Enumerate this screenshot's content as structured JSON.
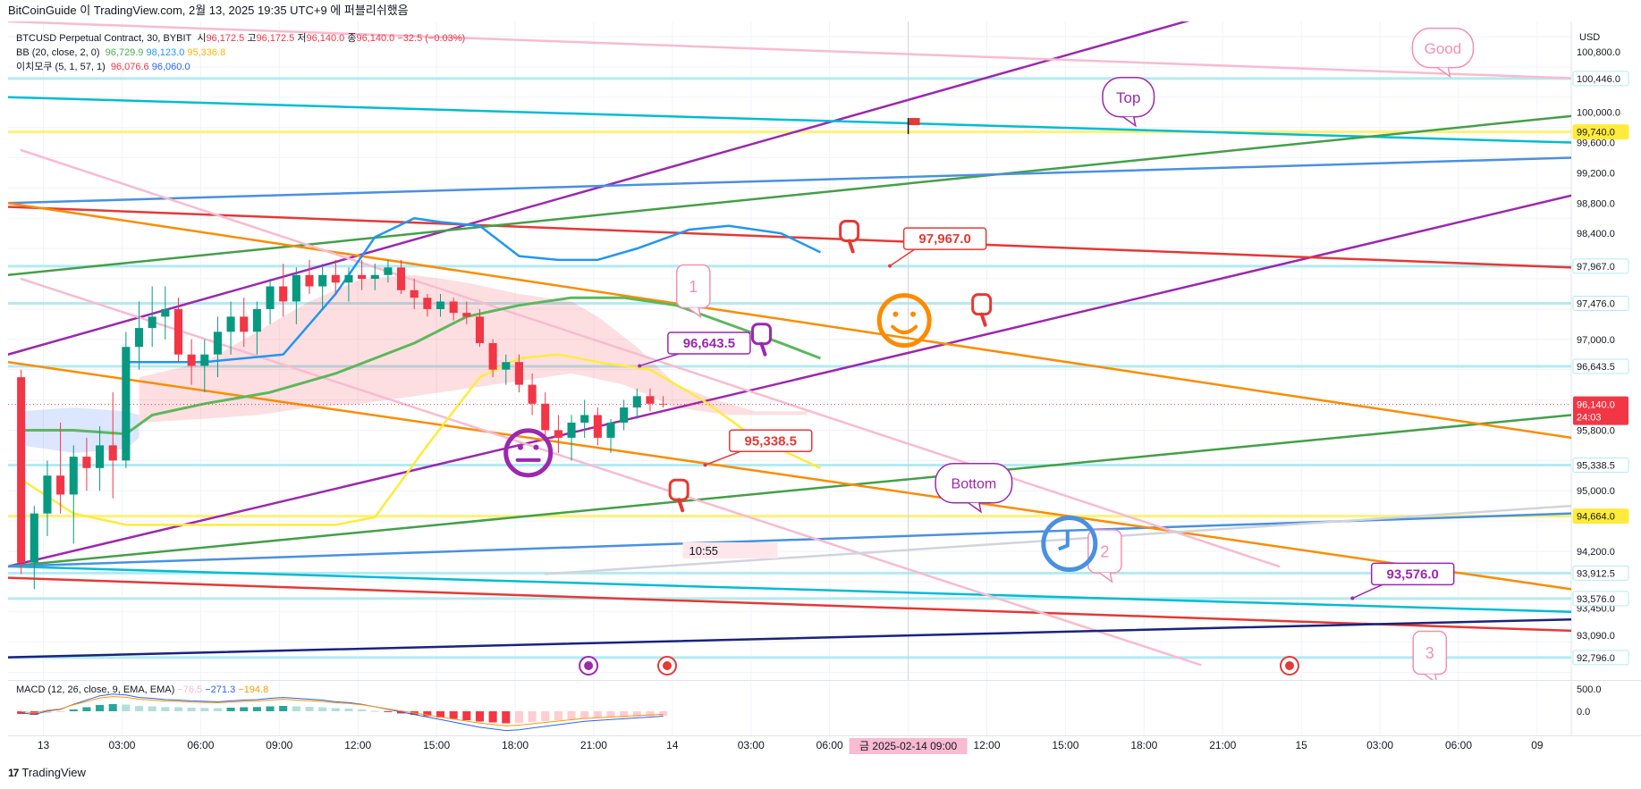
{
  "header": {
    "publish_line": "BitCoinGuide 이 TradingView.com, 2월 13, 2025 19:35 UTC+9 에 퍼블리쉬했음"
  },
  "legend": {
    "symbol": "BTCUSD Perpetual Contract, 30, BYBIT",
    "ohlc": [
      {
        "label": "시",
        "value": "96,172.5"
      },
      {
        "label": "고",
        "value": "96,172.5"
      },
      {
        "label": "저",
        "value": "96,140.0"
      },
      {
        "label": "종",
        "value": "96,140.0"
      }
    ],
    "change": "−32.5 (−0.03%)",
    "bb_label": "BB (20, close, 2, 0)",
    "bb_values": [
      "96,729.9",
      "98,123.0",
      "95,336.8"
    ],
    "ichimoku_label": "이치모쿠 (5, 1, 57, 1)",
    "ichimoku_values": [
      "96,076.6",
      "96,060.0"
    ],
    "colors": {
      "bb_basis": "#4caf50",
      "bb_upper": "#2196f3",
      "bb_lower": "#ffb300",
      "ichi1": "#f23645",
      "ichi2": "#2962ff",
      "ohlc": "#f23645"
    }
  },
  "currency": "USD",
  "macd": {
    "label": "MACD (12, 26, close, 9, EMA, EMA)",
    "values": [
      "−76.5",
      "−271.3",
      "−194.8"
    ],
    "axis_labels": [
      "500.0",
      "0.0"
    ]
  },
  "chart_data": {
    "type": "candlestick",
    "symbol": "BTCUSD",
    "timeframe": "30",
    "price_range": [
      92500,
      101200
    ],
    "price_ticks": [
      "100,800.0",
      "100,000.0",
      "99,600.0",
      "99,200.0",
      "98,800.0",
      "98,400.0",
      "97,000.0",
      "95,800.0",
      "95,000.0",
      "94,200.0",
      "93,450.0",
      "93,090.0"
    ],
    "price_labels": [
      {
        "text": "100,446.0",
        "value": 100446,
        "bg": "#ffffff",
        "fg": "#131722",
        "border": "#b2ebf2"
      },
      {
        "text": "99,740.0",
        "value": 99740,
        "bg": "#ffeb3b",
        "fg": "#131722",
        "border": "#ffeb3b"
      },
      {
        "text": "97,967.0",
        "value": 97967,
        "bg": "#ffffff",
        "fg": "#131722",
        "border": "#b2ebf2"
      },
      {
        "text": "97,476.0",
        "value": 97476,
        "bg": "#ffffff",
        "fg": "#131722",
        "border": "#b2ebf2"
      },
      {
        "text": "96,643.5",
        "value": 96643.5,
        "bg": "#ffffff",
        "fg": "#131722",
        "border": "#b2ebf2"
      },
      {
        "text": "95,338.5",
        "value": 95338.5,
        "bg": "#ffffff",
        "fg": "#131722",
        "border": "#b2ebf2"
      },
      {
        "text": "94,664.0",
        "value": 94664,
        "bg": "#ffeb3b",
        "fg": "#131722",
        "border": "#ffeb3b"
      },
      {
        "text": "93,912.5",
        "value": 93912.5,
        "bg": "#ffffff",
        "fg": "#131722",
        "border": "#b2ebf2"
      },
      {
        "text": "93,576.0",
        "value": 93576,
        "bg": "#ffffff",
        "fg": "#131722",
        "border": "#b2ebf2"
      },
      {
        "text": "92,796.0",
        "value": 92796,
        "bg": "#ffffff",
        "fg": "#131722",
        "border": "#b2ebf2"
      }
    ],
    "current_price": {
      "text": "96,140.0",
      "countdown": "24:03",
      "value": 96140,
      "color": "#f23645"
    },
    "horizontal_levels": [
      {
        "value": 100446,
        "color": "#b2ebf2"
      },
      {
        "value": 99740,
        "color": "#fff176"
      },
      {
        "value": 97967,
        "color": "#b2ebf2"
      },
      {
        "value": 97476,
        "color": "#b2ebf2"
      },
      {
        "value": 96643.5,
        "color": "#b2ebf2"
      },
      {
        "value": 95338.5,
        "color": "#b2ebf2"
      },
      {
        "value": 94664,
        "color": "#fff176"
      },
      {
        "value": 93912.5,
        "color": "#b2ebf2"
      },
      {
        "value": 93576,
        "color": "#b2ebf2"
      },
      {
        "value": 92796,
        "color": "#b2ebf2"
      }
    ],
    "time_ticks": [
      "13",
      "03:00",
      "06:00",
      "09:00",
      "12:00",
      "15:00",
      "18:00",
      "21:00",
      "14",
      "03:00",
      "06:00",
      "09:00",
      "12:00",
      "15:00",
      "18:00",
      "21:00",
      "15",
      "03:00",
      "06:00",
      "09"
    ],
    "time_tick_index": [
      1.7,
      7.7,
      13.7,
      19.7,
      25.7,
      31.7,
      37.7,
      43.7,
      49.7,
      55.7,
      61.7,
      67.7,
      73.7,
      79.7,
      85.7,
      91.7,
      97.7,
      103.7,
      109.7,
      115.7
    ],
    "highlighted_time": "금 2025-02-14   09:00",
    "highlighted_time_index": 67.7,
    "x_index_range": [
      -1,
      118.3
    ],
    "candles": [
      [
        96500,
        96600,
        93900,
        94050
      ],
      [
        94050,
        94800,
        93700,
        94700
      ],
      [
        94700,
        95400,
        94400,
        95200
      ],
      [
        95200,
        95900,
        94700,
        94950
      ],
      [
        94950,
        95600,
        94300,
        95450
      ],
      [
        95450,
        95700,
        95000,
        95300
      ],
      [
        95300,
        95850,
        95000,
        95600
      ],
      [
        95600,
        96300,
        94900,
        95400
      ],
      [
        95400,
        97100,
        95300,
        96900
      ],
      [
        96900,
        97500,
        96600,
        97150
      ],
      [
        97150,
        97700,
        96900,
        97300
      ],
      [
        97300,
        97700,
        97000,
        97400
      ],
      [
        97400,
        97550,
        96700,
        96800
      ],
      [
        96800,
        97000,
        96400,
        96650
      ],
      [
        96650,
        97000,
        96300,
        96800
      ],
      [
        96800,
        97300,
        96500,
        97100
      ],
      [
        97100,
        97500,
        96800,
        97300
      ],
      [
        97300,
        97550,
        96900,
        97100
      ],
      [
        97100,
        97500,
        96800,
        97400
      ],
      [
        97400,
        97800,
        97200,
        97700
      ],
      [
        97700,
        98000,
        97300,
        97500
      ],
      [
        97500,
        97950,
        97200,
        97850
      ],
      [
        97850,
        98050,
        97600,
        97700
      ],
      [
        97700,
        98000,
        97400,
        97850
      ],
      [
        97850,
        98050,
        97600,
        97750
      ],
      [
        97750,
        97950,
        97500,
        97850
      ],
      [
        97850,
        98050,
        97650,
        97800
      ],
      [
        97800,
        98000,
        97650,
        97850
      ],
      [
        97850,
        98050,
        97750,
        97950
      ],
      [
        97950,
        98050,
        97600,
        97650
      ],
      [
        97650,
        97800,
        97400,
        97550
      ],
      [
        97550,
        97600,
        97300,
        97400
      ],
      [
        97400,
        97600,
        97300,
        97500
      ],
      [
        97500,
        97550,
        97250,
        97350
      ],
      [
        97350,
        97500,
        97200,
        97300
      ],
      [
        97300,
        97400,
        96900,
        96950
      ],
      [
        96950,
        97000,
        96500,
        96600
      ],
      [
        96600,
        96800,
        96400,
        96700
      ],
      [
        96700,
        96800,
        96300,
        96400
      ],
      [
        96400,
        96550,
        96000,
        96150
      ],
      [
        96150,
        96300,
        95700,
        95800
      ],
      [
        95800,
        96000,
        95500,
        95700
      ],
      [
        95700,
        96000,
        95400,
        95900
      ],
      [
        95900,
        96200,
        95700,
        96000
      ],
      [
        96000,
        96100,
        95600,
        95700
      ],
      [
        95700,
        95950,
        95500,
        95900
      ],
      [
        95900,
        96200,
        95800,
        96100
      ],
      [
        96100,
        96350,
        95950,
        96250
      ],
      [
        96250,
        96350,
        96050,
        96150
      ],
      [
        96150,
        96250,
        96100,
        96140
      ]
    ],
    "bb_upper": [
      [
        8,
        96700
      ],
      [
        14,
        96700
      ],
      [
        20,
        96800
      ],
      [
        24,
        97600
      ],
      [
        27,
        98350
      ],
      [
        30,
        98600
      ],
      [
        32,
        98550
      ],
      [
        35,
        98500
      ],
      [
        38,
        98100
      ],
      [
        41,
        98050
      ],
      [
        44,
        98050
      ],
      [
        47,
        98200
      ],
      [
        51,
        98450
      ],
      [
        54,
        98500
      ],
      [
        58,
        98400
      ],
      [
        61,
        98150
      ]
    ],
    "bb_basis": [
      [
        0,
        95800
      ],
      [
        4,
        95800
      ],
      [
        8,
        95750
      ],
      [
        10,
        96000
      ],
      [
        14,
        96150
      ],
      [
        19,
        96300
      ],
      [
        24,
        96550
      ],
      [
        30,
        96950
      ],
      [
        34,
        97300
      ],
      [
        38,
        97450
      ],
      [
        42,
        97550
      ],
      [
        46,
        97550
      ],
      [
        50,
        97450
      ],
      [
        54,
        97200
      ],
      [
        58,
        96950
      ],
      [
        61,
        96750
      ]
    ],
    "bb_lower": [
      [
        0,
        95150
      ],
      [
        4,
        94700
      ],
      [
        8,
        94550
      ],
      [
        12,
        94550
      ],
      [
        18,
        94550
      ],
      [
        24,
        94550
      ],
      [
        27,
        94650
      ],
      [
        31,
        95600
      ],
      [
        35,
        96500
      ],
      [
        38,
        96750
      ],
      [
        41,
        96800
      ],
      [
        44,
        96700
      ],
      [
        48,
        96600
      ],
      [
        52,
        96200
      ],
      [
        56,
        95700
      ],
      [
        61,
        95300
      ]
    ],
    "cloud_upper": [
      [
        9,
        96500
      ],
      [
        14,
        96700
      ],
      [
        18,
        97100
      ],
      [
        22,
        97500
      ],
      [
        26,
        97800
      ],
      [
        30,
        97850
      ],
      [
        34,
        97750
      ],
      [
        38,
        97600
      ],
      [
        42,
        97500
      ],
      [
        44,
        97300
      ],
      [
        47,
        96900
      ],
      [
        50,
        96400
      ],
      [
        53,
        96200
      ],
      [
        56,
        96050
      ],
      [
        60,
        96050
      ]
    ],
    "cloud_lower": [
      [
        9,
        95900
      ],
      [
        14,
        95950
      ],
      [
        18,
        96000
      ],
      [
        22,
        96100
      ],
      [
        26,
        96150
      ],
      [
        30,
        96250
      ],
      [
        34,
        96350
      ],
      [
        38,
        96450
      ],
      [
        42,
        96550
      ],
      [
        46,
        96400
      ],
      [
        50,
        96100
      ],
      [
        54,
        96000
      ],
      [
        58,
        96000
      ],
      [
        60,
        96000
      ]
    ],
    "cloud_blue_upper": [
      [
        0,
        96050
      ],
      [
        4,
        96100
      ],
      [
        8,
        96050
      ],
      [
        9,
        96000
      ]
    ],
    "cloud_blue_lower": [
      [
        0,
        95600
      ],
      [
        4,
        95500
      ],
      [
        8,
        95550
      ],
      [
        9,
        95700
      ]
    ],
    "trendlines": [
      {
        "color": "#9c27b0",
        "width": 2.5,
        "p1": [
          -1,
          96800
        ],
        "p2": [
          95,
          101500
        ]
      },
      {
        "color": "#9c27b0",
        "width": 2.5,
        "p1": [
          -1,
          94000
        ],
        "p2": [
          118.3,
          98900
        ]
      },
      {
        "color": "#00bcd4",
        "width": 2.5,
        "p1": [
          -1,
          100200
        ],
        "p2": [
          118.3,
          99600
        ]
      },
      {
        "color": "#e53935",
        "width": 2.5,
        "p1": [
          -1,
          98750
        ],
        "p2": [
          118.3,
          97950
        ]
      },
      {
        "color": "#e53935",
        "width": 2.5,
        "p1": [
          -1,
          93850
        ],
        "p2": [
          118.3,
          93150
        ]
      },
      {
        "color": "#00bcd4",
        "width": 2.5,
        "p1": [
          -1,
          94000
        ],
        "p2": [
          118.3,
          93400
        ]
      },
      {
        "color": "#43a047",
        "width": 2.5,
        "p1": [
          -1,
          97850
        ],
        "p2": [
          118.3,
          99950
        ]
      },
      {
        "color": "#43a047",
        "width": 2.5,
        "p1": [
          -1,
          94000
        ],
        "p2": [
          118.3,
          96000
        ]
      },
      {
        "color": "#4a90e2",
        "width": 2.5,
        "p1": [
          -1,
          98800
        ],
        "p2": [
          118.3,
          99400
        ]
      },
      {
        "color": "#4a90e2",
        "width": 2.5,
        "p1": [
          -1,
          94000
        ],
        "p2": [
          118.3,
          94700
        ]
      },
      {
        "color": "#fb8c00",
        "width": 2.5,
        "p1": [
          -1,
          98800
        ],
        "p2": [
          118.3,
          95700
        ]
      },
      {
        "color": "#fb8c00",
        "width": 2.5,
        "p1": [
          -1,
          96700
        ],
        "p2": [
          118.3,
          93700
        ]
      },
      {
        "color": "#f8bbd0",
        "width": 2.5,
        "p1": [
          -1,
          101200
        ],
        "p2": [
          118.3,
          100450
        ]
      },
      {
        "color": "#f8bbd0",
        "width": 2.5,
        "p1": [
          0,
          99500
        ],
        "p2": [
          96,
          94000
        ]
      },
      {
        "color": "#f8bbd0",
        "width": 2.5,
        "p1": [
          0,
          97800
        ],
        "p2": [
          90,
          92700
        ]
      },
      {
        "color": "#d1d4dc",
        "width": 2.5,
        "p1": [
          40,
          93900
        ],
        "p2": [
          118.3,
          94800
        ]
      },
      {
        "color": "#1a237e",
        "width": 2.5,
        "p1": [
          -1,
          92800
        ],
        "p2": [
          118.3,
          93300
        ]
      }
    ],
    "callouts": [
      {
        "text": "96,643.5",
        "idx": 52.5,
        "price": 96950,
        "color": "#9c27b0",
        "ax": 47.2,
        "ay": 96650
      },
      {
        "text": "97,967.0",
        "idx": 70.5,
        "price": 98330,
        "color": "#e53935",
        "ax": 66.3,
        "ay": 97970
      },
      {
        "text": "95,338.5",
        "idx": 57.2,
        "price": 95660,
        "color": "#e53935",
        "ax": 52.2,
        "ay": 95340
      },
      {
        "text": "93,576.0",
        "idx": 106.2,
        "price": 93900,
        "color": "#9c27b0",
        "ax": 101.6,
        "ay": 93580
      }
    ],
    "speech_bubbles": [
      {
        "text": "Good",
        "idx": 108.5,
        "price": 100850,
        "color": "#f48fb1",
        "size": 17
      },
      {
        "text": "Top",
        "idx": 84.5,
        "price": 100200,
        "color": "#9c27b0",
        "size": 17
      },
      {
        "text": "Bottom",
        "idx": 72.7,
        "price": 95100,
        "color": "#9c27b0",
        "size": 16
      },
      {
        "text": "1",
        "idx": 51.3,
        "price": 97700,
        "color": "#f48fb1",
        "size": 18
      },
      {
        "text": "2",
        "idx": 82.7,
        "price": 94200,
        "color": "#f48fb1",
        "size": 18
      },
      {
        "text": "3",
        "idx": 107.5,
        "price": 92860,
        "color": "#f48fb1",
        "size": 18
      }
    ],
    "time_label": {
      "text": "10:55",
      "idx": 50.7,
      "price": 94200
    },
    "annotations": [
      "Good",
      "Top",
      "Bottom",
      "1",
      "2",
      "3",
      "10:55"
    ]
  }
}
